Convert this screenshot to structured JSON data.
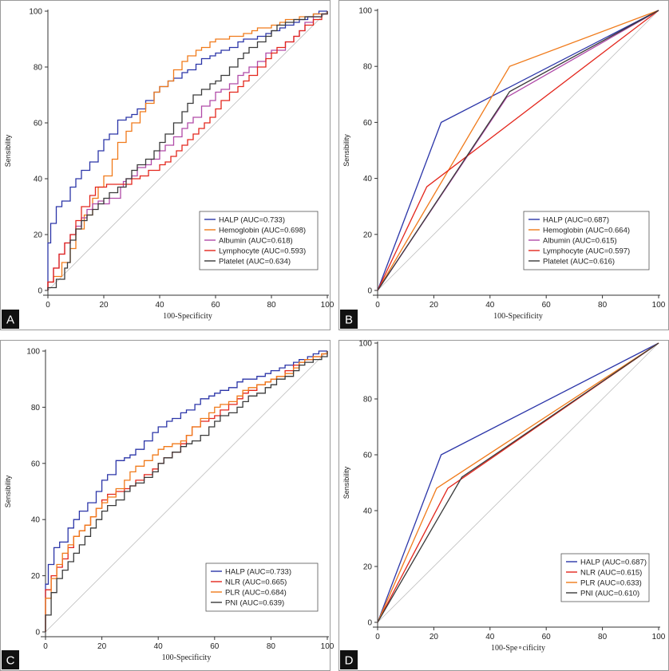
{
  "chart_data": [
    {
      "type": "line",
      "panel": "A",
      "xlabel": "100-Specificity",
      "ylabel": "Sensibility",
      "xlim": [
        0,
        100
      ],
      "ylim": [
        0,
        100
      ],
      "xticks": [
        0,
        20,
        40,
        60,
        80,
        100
      ],
      "yticks": [
        0,
        20,
        40,
        60,
        80,
        100
      ],
      "legend_position": "bottom-right",
      "series": [
        {
          "name": "HALP (AUC=0.733)",
          "color": "#2b35a8",
          "x": [
            0,
            0,
            1,
            1,
            3,
            5,
            8,
            10,
            12,
            15,
            18,
            20,
            22,
            25,
            28,
            30,
            32,
            35,
            38,
            40,
            43,
            45,
            48,
            50,
            53,
            55,
            58,
            60,
            62,
            65,
            68,
            70,
            73,
            75,
            78,
            80,
            83,
            85,
            88,
            90,
            93,
            95,
            97,
            98,
            100
          ],
          "y": [
            0,
            17,
            17,
            24,
            30,
            32,
            37,
            40,
            43,
            46,
            50,
            54,
            56,
            61,
            62,
            63,
            65,
            68,
            71,
            73,
            75,
            76,
            78,
            79,
            81,
            83,
            84,
            85,
            86,
            87,
            89,
            90,
            90,
            91,
            92,
            93,
            94,
            95,
            96,
            97,
            98,
            99,
            100,
            100,
            100
          ]
        },
        {
          "name": "Hemoglobin (AUC=0.698)",
          "color": "#f07a1a",
          "x": [
            0,
            0,
            2,
            5,
            8,
            10,
            13,
            16,
            18,
            20,
            23,
            25,
            28,
            30,
            33,
            35,
            38,
            40,
            43,
            45,
            48,
            50,
            53,
            55,
            58,
            60,
            63,
            65,
            68,
            70,
            73,
            75,
            78,
            80,
            83,
            85,
            88,
            90,
            93,
            95,
            98,
            100
          ],
          "y": [
            0,
            3,
            5,
            10,
            15,
            22,
            27,
            33,
            37,
            41,
            47,
            53,
            57,
            60,
            64,
            67,
            71,
            73,
            75,
            79,
            82,
            84,
            86,
            87,
            89,
            90,
            90,
            91,
            91,
            92,
            93,
            94,
            94,
            95,
            96,
            97,
            97,
            98,
            98,
            99,
            99,
            100
          ]
        },
        {
          "name": "Albumin (AUC=0.618)",
          "color": "#b04aa8",
          "x": [
            0,
            0,
            2,
            4,
            6,
            8,
            10,
            12,
            14,
            16,
            18,
            20,
            22,
            25,
            26,
            27,
            28,
            30,
            32,
            35,
            37,
            40,
            42,
            45,
            48,
            50,
            52,
            55,
            58,
            60,
            62,
            65,
            68,
            70,
            72,
            75,
            78,
            80,
            82,
            85,
            88,
            90,
            92,
            95,
            98,
            100
          ],
          "y": [
            0,
            3,
            8,
            13,
            17,
            20,
            23,
            26,
            29,
            31,
            32,
            31,
            33,
            33,
            37,
            39,
            40,
            41,
            44,
            45,
            47,
            50,
            52,
            55,
            58,
            60,
            62,
            66,
            68,
            71,
            72,
            74,
            77,
            78,
            80,
            82,
            85,
            86,
            86,
            89,
            91,
            93,
            96,
            98,
            99,
            100
          ]
        },
        {
          "name": "Lymphocyte (AUC=0.593)",
          "color": "#e3261c",
          "x": [
            0,
            0,
            2,
            4,
            6,
            8,
            10,
            12,
            15,
            17,
            19,
            21,
            24,
            26,
            30,
            33,
            36,
            40,
            42,
            44,
            46,
            48,
            50,
            52,
            54,
            56,
            58,
            60,
            62,
            65,
            68,
            70,
            72,
            75,
            78,
            80,
            82,
            85,
            88,
            90,
            92,
            95,
            98,
            100
          ],
          "y": [
            0,
            3,
            8,
            13,
            17,
            20,
            25,
            30,
            34,
            37,
            37,
            38,
            38,
            38,
            40,
            41,
            43,
            45,
            46,
            48,
            50,
            52,
            54,
            56,
            58,
            60,
            62,
            65,
            68,
            71,
            73,
            75,
            77,
            80,
            83,
            85,
            87,
            89,
            91,
            93,
            95,
            97,
            99,
            100
          ]
        },
        {
          "name": "Platelet (AUC=0.634)",
          "color": "#3a3a3a",
          "x": [
            0,
            0,
            3,
            6,
            7,
            8,
            10,
            12,
            14,
            16,
            18,
            20,
            22,
            25,
            28,
            30,
            32,
            35,
            38,
            40,
            42,
            45,
            48,
            50,
            52,
            55,
            58,
            60,
            62,
            65,
            68,
            70,
            72,
            75,
            78,
            80,
            82,
            85,
            88,
            90,
            92,
            95,
            98,
            100
          ],
          "y": [
            0,
            1,
            4,
            8,
            10,
            18,
            22,
            25,
            27,
            29,
            31,
            33,
            35,
            37,
            40,
            43,
            45,
            47,
            50,
            53,
            56,
            60,
            64,
            67,
            70,
            72,
            74,
            75,
            77,
            80,
            83,
            85,
            87,
            89,
            91,
            93,
            95,
            96,
            97,
            97,
            98,
            98,
            99,
            100
          ]
        }
      ],
      "legend": [
        "HALP (AUC=0.733)",
        "Hemoglobin (AUC=0.698)",
        "Albumin (AUC=0.618)",
        "Lymphocyte (AUC=0.593)",
        "Platelet (AUC=0.634)"
      ]
    },
    {
      "type": "line",
      "panel": "B",
      "xlabel": "100-Specificity",
      "ylabel": "Sensibility",
      "xlim": [
        0,
        100
      ],
      "ylim": [
        0,
        100
      ],
      "xticks": [
        0,
        20,
        40,
        60,
        80,
        100
      ],
      "yticks": [
        0,
        20,
        40,
        60,
        80,
        100
      ],
      "legend_position": "bottom-right",
      "series": [
        {
          "name": "HALP (AUC=0.687)",
          "color": "#2b35a8",
          "x": [
            0,
            22.6,
            100
          ],
          "y": [
            0,
            60,
            100
          ]
        },
        {
          "name": "Hemoglobin (AUC=0.664)",
          "color": "#f07a1a",
          "x": [
            0,
            47,
            100
          ],
          "y": [
            0,
            80,
            100
          ]
        },
        {
          "name": "Albumin (AUC=0.615)",
          "color": "#b04aa8",
          "x": [
            0,
            46,
            100
          ],
          "y": [
            0,
            69,
            100
          ]
        },
        {
          "name": "Lymphocyte (AUC=0.597)",
          "color": "#e3261c",
          "x": [
            0,
            17.5,
            100
          ],
          "y": [
            0,
            37,
            100
          ]
        },
        {
          "name": "Platelet (AUC=0.616)",
          "color": "#3a3a3a",
          "x": [
            0,
            47,
            100
          ],
          "y": [
            0,
            71,
            100
          ]
        }
      ],
      "legend": [
        "HALP (AUC=0.687)",
        "Hemoglobin (AUC=0.664)",
        "Albumin (AUC=0.615)",
        "Lymphocyte (AUC=0.597)",
        "Platelet (AUC=0.616)"
      ]
    },
    {
      "type": "line",
      "panel": "C",
      "xlabel": "100-Specificity",
      "ylabel": "Sensibility",
      "xlim": [
        0,
        100
      ],
      "ylim": [
        0,
        100
      ],
      "xticks": [
        0,
        20,
        40,
        60,
        80,
        100
      ],
      "yticks": [
        0,
        20,
        40,
        60,
        80,
        100
      ],
      "legend_position": "bottom-right",
      "series": [
        {
          "name": "HALP (AUC=0.733)",
          "color": "#2b35a8",
          "x": [
            0,
            0,
            1,
            1,
            3,
            5,
            8,
            10,
            12,
            15,
            18,
            20,
            22,
            25,
            28,
            30,
            32,
            35,
            38,
            40,
            43,
            45,
            48,
            50,
            53,
            55,
            58,
            60,
            62,
            65,
            68,
            70,
            73,
            75,
            78,
            80,
            83,
            85,
            88,
            90,
            93,
            95,
            97,
            98,
            100
          ],
          "y": [
            0,
            17,
            17,
            24,
            30,
            32,
            37,
            40,
            43,
            46,
            50,
            54,
            56,
            61,
            62,
            63,
            65,
            68,
            71,
            73,
            75,
            76,
            78,
            79,
            81,
            83,
            84,
            85,
            86,
            87,
            89,
            90,
            90,
            91,
            92,
            93,
            94,
            95,
            96,
            97,
            98,
            99,
            100,
            100,
            100
          ]
        },
        {
          "name": "NLR (AUC=0.665)",
          "color": "#e3261c",
          "x": [
            0,
            0,
            2,
            4,
            6,
            8,
            10,
            12,
            14,
            16,
            18,
            20,
            22,
            25,
            28,
            30,
            32,
            35,
            38,
            40,
            42,
            45,
            48,
            50,
            52,
            55,
            58,
            60,
            62,
            65,
            68,
            70,
            72,
            75,
            78,
            80,
            82,
            85,
            88,
            90,
            92,
            95,
            98,
            100
          ],
          "y": [
            0,
            15,
            20,
            23,
            26,
            30,
            34,
            36,
            38,
            41,
            44,
            47,
            49,
            50,
            51,
            52,
            54,
            56,
            58,
            60,
            62,
            64,
            67,
            70,
            73,
            75,
            76,
            77,
            79,
            81,
            83,
            85,
            86,
            88,
            89,
            90,
            91,
            93,
            95,
            96,
            97,
            98,
            99,
            100
          ]
        },
        {
          "name": "PLR (AUC=0.684)",
          "color": "#f07a1a",
          "x": [
            0,
            0,
            2,
            4,
            6,
            8,
            10,
            12,
            14,
            16,
            18,
            20,
            22,
            25,
            28,
            30,
            32,
            35,
            38,
            40,
            42,
            45,
            48,
            50,
            52,
            55,
            58,
            60,
            62,
            65,
            68,
            70,
            72,
            75,
            78,
            80,
            82,
            85,
            88,
            90,
            92,
            95,
            98,
            100
          ],
          "y": [
            0,
            12,
            19,
            24,
            28,
            31,
            34,
            36,
            38,
            41,
            44,
            46,
            48,
            51,
            54,
            57,
            59,
            61,
            63,
            65,
            66,
            67,
            68,
            70,
            73,
            76,
            78,
            80,
            81,
            82,
            84,
            86,
            87,
            88,
            89,
            90,
            91,
            92,
            94,
            96,
            97,
            98,
            99,
            100
          ]
        },
        {
          "name": "PNI (AUC=0.639)",
          "color": "#3a3a3a",
          "x": [
            0,
            0,
            2,
            4,
            6,
            8,
            10,
            12,
            14,
            16,
            18,
            20,
            22,
            25,
            28,
            30,
            32,
            35,
            38,
            40,
            42,
            45,
            48,
            50,
            52,
            55,
            58,
            60,
            62,
            65,
            68,
            70,
            72,
            75,
            78,
            80,
            82,
            85,
            88,
            90,
            92,
            95,
            98,
            100
          ],
          "y": [
            0,
            6,
            14,
            19,
            22,
            25,
            28,
            31,
            34,
            37,
            40,
            43,
            45,
            47,
            50,
            52,
            53,
            55,
            57,
            60,
            62,
            64,
            66,
            67,
            68,
            70,
            73,
            75,
            77,
            78,
            80,
            82,
            84,
            85,
            87,
            88,
            90,
            91,
            93,
            95,
            96,
            97,
            98,
            100
          ]
        }
      ],
      "legend": [
        "HALP (AUC=0.733)",
        "NLR (AUC=0.665)",
        "PLR (AUC=0.684)",
        "PNI (AUC=0.639)"
      ]
    },
    {
      "type": "line",
      "panel": "D",
      "xlabel": "100-Spe∘cificity",
      "ylabel": "Sensibility",
      "xlim": [
        0,
        100
      ],
      "ylim": [
        0,
        100
      ],
      "xticks": [
        0,
        20,
        40,
        60,
        80,
        100
      ],
      "yticks": [
        0,
        20,
        40,
        60,
        80,
        100
      ],
      "legend_position": "bottom-right",
      "series": [
        {
          "name": "HALP (AUC=0.687)",
          "color": "#2b35a8",
          "x": [
            0,
            22.6,
            100
          ],
          "y": [
            0,
            60,
            100
          ]
        },
        {
          "name": "NLR (AUC=0.615)",
          "color": "#e3261c",
          "x": [
            0,
            25,
            100
          ],
          "y": [
            0,
            48,
            100
          ]
        },
        {
          "name": "PLR (AUC=0.633)",
          "color": "#f07a1a",
          "x": [
            0,
            21,
            100
          ],
          "y": [
            0,
            48,
            100
          ]
        },
        {
          "name": "PNI (AUC=0.610)",
          "color": "#3a3a3a",
          "x": [
            0,
            30,
            100
          ],
          "y": [
            0,
            52,
            100
          ]
        }
      ],
      "legend": [
        "HALP (AUC=0.687)",
        "NLR (AUC=0.615)",
        "PLR (AUC=0.633)",
        "PNI (AUC=0.610)"
      ]
    }
  ]
}
